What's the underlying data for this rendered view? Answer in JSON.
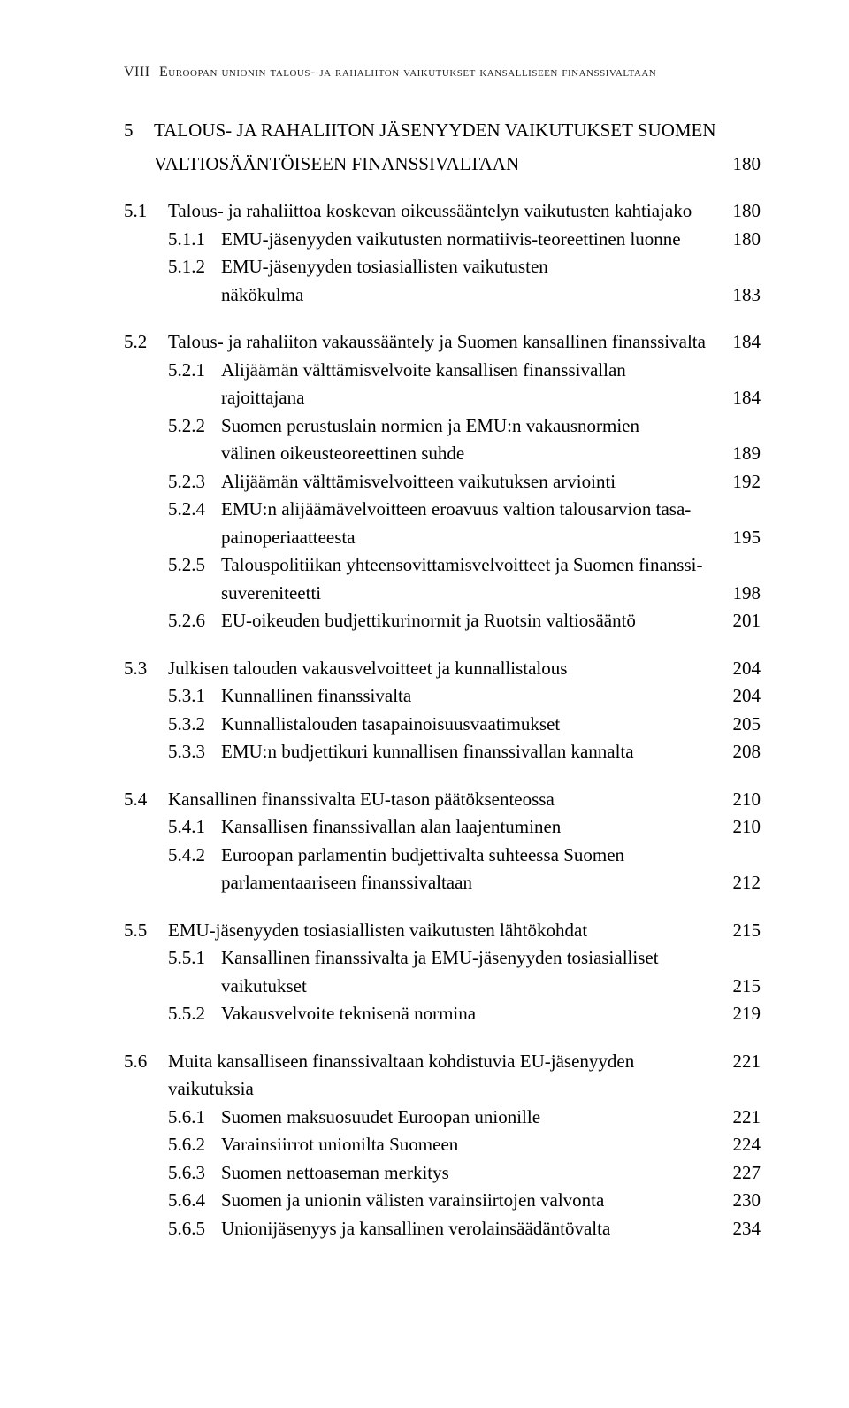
{
  "header": {
    "page_roman": "VIII",
    "running_title": "Euroopan unionin talous- ja rahaliiton vaikutukset kansalliseen finanssivaltaan"
  },
  "chapter": {
    "num": "5",
    "title_line1": "TALOUS- JA RAHALIITON JÄSENYYDEN VAIKUTUKSET SUOMEN",
    "title_line2": "VALTIOSÄÄNTÖISEEN FINANSSIVALTAAN",
    "page": "180"
  },
  "sections": [
    {
      "num": "5.1",
      "label": "Talous- ja rahaliittoa koskevan oikeussääntelyn vaikutusten kahtiajako",
      "page": "180",
      "subs": [
        {
          "num": "5.1.1",
          "label": "EMU-jäsenyyden vaikutusten normatiivis-teoreettinen luonne",
          "page": "180"
        },
        {
          "num": "5.1.2",
          "label_lines": [
            "EMU-jäsenyyden tosiasiallisten vaikutusten",
            "näkökulma"
          ],
          "page": "183"
        }
      ]
    },
    {
      "num": "5.2",
      "label": "Talous- ja rahaliiton vakaussääntely ja Suomen kansallinen finanssivalta",
      "page": "184",
      "subs": [
        {
          "num": "5.2.1",
          "label_lines": [
            "Alijäämän välttämisvelvoite kansallisen finanssivallan",
            "rajoittajana"
          ],
          "page": "184"
        },
        {
          "num": "5.2.2",
          "label_lines": [
            "Suomen perustuslain normien ja EMU:n vakausnormien",
            "välinen oikeusteoreettinen suhde"
          ],
          "page": "189"
        },
        {
          "num": "5.2.3",
          "label": "Alijäämän välttämisvelvoitteen vaikutuksen arviointi",
          "page": "192"
        },
        {
          "num": "5.2.4",
          "label_lines": [
            "EMU:n alijäämävelvoitteen eroavuus valtion talousarvion tasa-",
            "painoperiaatteesta"
          ],
          "page": "195"
        },
        {
          "num": "5.2.5",
          "label_lines": [
            "Talouspolitiikan yhteensovittamisvelvoitteet ja Suomen finanssi-",
            "suvereniteetti"
          ],
          "page": "198"
        },
        {
          "num": "5.2.6",
          "label": "EU-oikeuden budjettikurinormit ja Ruotsin valtiosääntö",
          "page": "201"
        }
      ]
    },
    {
      "num": "5.3",
      "label": "Julkisen talouden vakausvelvoitteet ja kunnallistalous",
      "page": "204",
      "subs": [
        {
          "num": "5.3.1",
          "label": "Kunnallinen finanssivalta",
          "page": "204"
        },
        {
          "num": "5.3.2",
          "label": "Kunnallistalouden tasapainoisuusvaatimukset",
          "page": "205"
        },
        {
          "num": "5.3.3",
          "label": "EMU:n budjettikuri kunnallisen finanssivallan kannalta",
          "page": "208"
        }
      ]
    },
    {
      "num": "5.4",
      "label": "Kansallinen finanssivalta EU-tason päätöksenteossa",
      "page": "210",
      "subs": [
        {
          "num": "5.4.1",
          "label": "Kansallisen finanssivallan alan laajentuminen",
          "page": "210"
        },
        {
          "num": "5.4.2",
          "label_lines": [
            "Euroopan parlamentin budjettivalta suhteessa Suomen",
            "parlamentaariseen finanssivaltaan"
          ],
          "page": "212"
        }
      ]
    },
    {
      "num": "5.5",
      "label": "EMU-jäsenyyden tosiasiallisten vaikutusten lähtökohdat",
      "page": "215",
      "subs": [
        {
          "num": "5.5.1",
          "label_lines": [
            "Kansallinen finanssivalta ja EMU-jäsenyyden tosiasialliset",
            "vaikutukset"
          ],
          "page": "215"
        },
        {
          "num": "5.5.2",
          "label": "Vakausvelvoite teknisenä normina",
          "page": "219"
        }
      ]
    },
    {
      "num": "5.6",
      "label": "Muita kansalliseen finanssivaltaan kohdistuvia EU-jäsenyyden vaikutuksia",
      "page": "221",
      "subs": [
        {
          "num": "5.6.1",
          "label": "Suomen maksuosuudet Euroopan unionille",
          "page": "221"
        },
        {
          "num": "5.6.2",
          "label": "Varainsiirrot unionilta Suomeen",
          "page": "224"
        },
        {
          "num": "5.6.3",
          "label": "Suomen nettoaseman merkitys",
          "page": "227"
        },
        {
          "num": "5.6.4",
          "label": "Suomen ja unionin välisten varainsiirtojen valvonta",
          "page": "230"
        },
        {
          "num": "5.6.5",
          "label": "Unionijäsenyys ja kansallinen verolainsäädäntövalta",
          "page": "234"
        }
      ]
    }
  ]
}
